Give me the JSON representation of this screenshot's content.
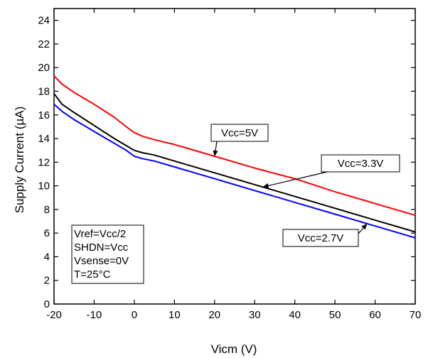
{
  "chart_data": {
    "type": "line",
    "title": "",
    "xlabel": "Vicm (V)",
    "ylabel": "Supply Current (µA)",
    "xlim": [
      -20,
      70
    ],
    "ylim": [
      0,
      25
    ],
    "xticks": [
      -20,
      -10,
      0,
      10,
      20,
      30,
      40,
      50,
      60,
      70
    ],
    "xtick_labels": [
      "-20",
      "-10",
      "0",
      "10",
      "20",
      "30",
      "40",
      "50",
      "60",
      "70"
    ],
    "yticks": [
      0,
      2,
      4,
      6,
      8,
      10,
      12,
      14,
      16,
      18,
      20,
      22,
      24
    ],
    "ytick_labels": [
      "0",
      "2",
      "4",
      "6",
      "8",
      "10",
      "12",
      "14",
      "16",
      "18",
      "20",
      "22",
      "24"
    ],
    "grid": false,
    "series": [
      {
        "name": "Vcc=5V",
        "color": "#ff0000",
        "x": [
          -20,
          -18,
          -15,
          -10,
          -5,
          -2,
          0,
          2,
          5,
          10,
          20,
          30,
          40,
          50,
          60,
          70
        ],
        "y": [
          19.3,
          18.6,
          17.9,
          16.9,
          15.8,
          15.0,
          14.5,
          14.2,
          13.9,
          13.5,
          12.5,
          11.5,
          10.6,
          9.5,
          8.5,
          7.5
        ]
      },
      {
        "name": "Vcc=3.3V",
        "color": "#000000",
        "x": [
          -20,
          -18,
          -15,
          -10,
          -5,
          -2,
          0,
          2,
          5,
          10,
          20,
          30,
          40,
          50,
          60,
          70
        ],
        "y": [
          17.8,
          16.9,
          16.2,
          15.1,
          14.0,
          13.4,
          13.0,
          12.8,
          12.6,
          12.1,
          11.1,
          10.1,
          9.1,
          8.1,
          7.1,
          6.1
        ]
      },
      {
        "name": "Vcc=2.7V",
        "color": "#0000ff",
        "x": [
          -20,
          -18,
          -15,
          -10,
          -5,
          -2,
          0,
          2,
          5,
          10,
          20,
          30,
          40,
          50,
          60,
          70
        ],
        "y": [
          16.9,
          16.3,
          15.6,
          14.6,
          13.6,
          13.0,
          12.5,
          12.3,
          12.1,
          11.6,
          10.6,
          9.6,
          8.6,
          7.6,
          6.6,
          5.6
        ]
      }
    ],
    "annotations": [
      {
        "text": "Vcc=5V",
        "series": 0,
        "x": 20
      },
      {
        "text": "Vcc=3.3V",
        "series": 1,
        "x": 32
      },
      {
        "text": "Vcc=2.7V",
        "series": 2,
        "x": 58
      }
    ],
    "conditions": [
      "Vref=Vcc/2",
      "SHDN=Vcc",
      "Vsense=0V",
      "T=25°C"
    ]
  }
}
